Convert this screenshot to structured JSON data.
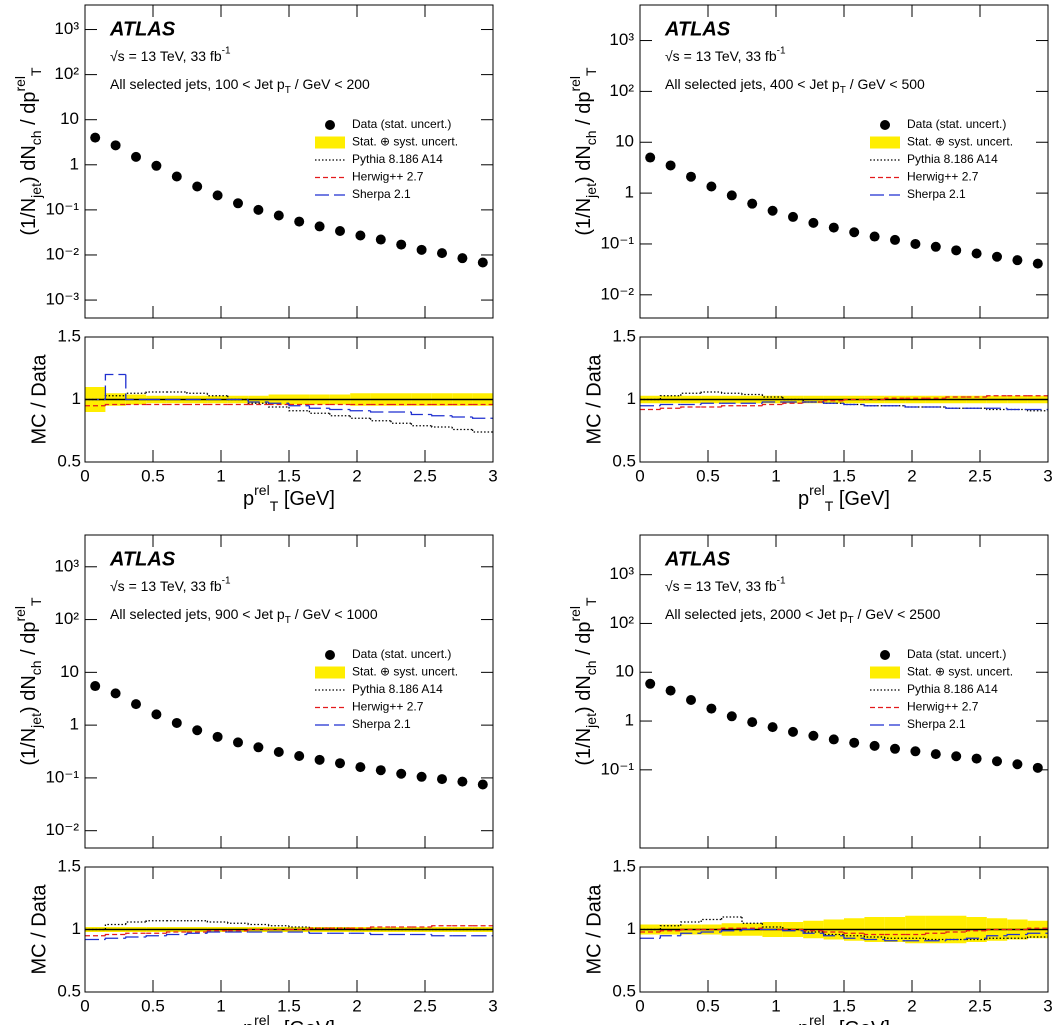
{
  "chart_data": [
    {
      "type": "ratio_histogram",
      "experiment": "ATLAS",
      "energy": [
        {
          "text": "√s = 13 TeV, 33 fb"
        },
        {
          "text": "-1",
          "shift": "sup"
        }
      ],
      "selection": [
        {
          "text": "All selected jets, 100 < Jet p"
        },
        {
          "text": "T",
          "shift": "sub"
        },
        {
          "text": " / GeV < 200"
        }
      ],
      "ylabel": [
        {
          "text": "(1/N"
        },
        {
          "text": "jet",
          "shift": "sub"
        },
        {
          "text": ") dN"
        },
        {
          "text": "ch",
          "shift": "sub"
        },
        {
          "text": " / dp"
        },
        {
          "text": "rel",
          "shift": "sup"
        },
        {
          "text": "T",
          "shift": "sub"
        }
      ],
      "xlabel": [
        {
          "text": "p"
        },
        {
          "text": "rel",
          "shift": "sup"
        },
        {
          "text": "T",
          "shift": "sub"
        },
        {
          "text": " [GeV]"
        }
      ],
      "log_y": true,
      "ylim": [
        0.0004,
        3500
      ],
      "yticks": [
        {
          "value": 0.001,
          "label": "10⁻³"
        },
        {
          "value": 0.01,
          "label": "10⁻²"
        },
        {
          "value": 0.1,
          "label": "10⁻¹"
        },
        1,
        10,
        {
          "value": 100,
          "label": "10²"
        },
        {
          "value": 1000,
          "label": "10³"
        }
      ],
      "xlim": [
        0,
        3
      ],
      "xticks": [
        0,
        0.5,
        1,
        1.5,
        2,
        2.5,
        3
      ],
      "bins": [
        0,
        0.15,
        0.3,
        0.45,
        0.6,
        0.75,
        0.9,
        1.05,
        1.2,
        1.35,
        1.5,
        1.65,
        1.8,
        1.95,
        2.1,
        2.25,
        2.4,
        2.55,
        2.7,
        2.85,
        3
      ],
      "series": [
        {
          "name": "Data (stat. uncert.)",
          "color": "#000000",
          "values": [
            4,
            2.7,
            1.5,
            0.95,
            0.55,
            0.33,
            0.21,
            0.14,
            0.1,
            0.075,
            0.055,
            0.043,
            0.034,
            0.027,
            0.022,
            0.017,
            0.013,
            0.011,
            0.0085,
            0.0068
          ]
        },
        {
          "name": "Stat. ⊕ syst. uncert.",
          "color": "#ffee00",
          "values": [
            0.1,
            0.05,
            0.04,
            0.03,
            0.03,
            0.03,
            0.03,
            0.03,
            0.03,
            0.04,
            0.04,
            0.04,
            0.04,
            0.05,
            0.05,
            0.05,
            0.05,
            0.05,
            0.05,
            0.05
          ]
        },
        {
          "name": "Pythia 8.186 A14",
          "color": "#000000",
          "line_style": "dotted",
          "values": [
            1.0,
            1.03,
            1.05,
            1.06,
            1.06,
            1.05,
            1.03,
            1.0,
            0.97,
            0.94,
            0.91,
            0.89,
            0.87,
            0.85,
            0.83,
            0.81,
            0.79,
            0.78,
            0.76,
            0.74
          ]
        },
        {
          "name": "Herwig++ 2.7",
          "color": "#e31a1c",
          "line_style": "dashed",
          "values": [
            0.95,
            0.96,
            0.96,
            0.96,
            0.96,
            0.96,
            0.96,
            0.96,
            0.96,
            0.96,
            0.96,
            0.96,
            0.96,
            0.96,
            0.96,
            0.96,
            0.96,
            0.96,
            0.96,
            0.96
          ]
        },
        {
          "name": "Sherpa 2.1",
          "color": "#1f2fd0",
          "line_style": "long-dashed",
          "values": [
            1.0,
            1.2,
            1.0,
            1.0,
            1.0,
            1.0,
            1.0,
            1.0,
            0.98,
            0.97,
            0.95,
            0.93,
            0.92,
            0.91,
            0.9,
            0.9,
            0.88,
            0.87,
            0.86,
            0.85
          ]
        }
      ],
      "ratio": {
        "ylabel": "MC / Data",
        "ylim": [
          0.5,
          1.5
        ],
        "yticks": [
          0.5,
          1,
          1.5
        ],
        "reference": 1
      }
    },
    {
      "type": "ratio_histogram",
      "experiment": "ATLAS",
      "energy": [
        {
          "text": "√s = 13 TeV, 33 fb"
        },
        {
          "text": "-1",
          "shift": "sup"
        }
      ],
      "selection": [
        {
          "text": "All selected jets, 400 < Jet p"
        },
        {
          "text": "T",
          "shift": "sub"
        },
        {
          "text": " / GeV < 500"
        }
      ],
      "ylabel": [
        {
          "text": "(1/N"
        },
        {
          "text": "jet",
          "shift": "sub"
        },
        {
          "text": ") dN"
        },
        {
          "text": "ch",
          "shift": "sub"
        },
        {
          "text": " / dp"
        },
        {
          "text": "rel",
          "shift": "sup"
        },
        {
          "text": "T",
          "shift": "sub"
        }
      ],
      "xlabel": [
        {
          "text": "p"
        },
        {
          "text": "rel",
          "shift": "sup"
        },
        {
          "text": "T",
          "shift": "sub"
        },
        {
          "text": " [GeV]"
        }
      ],
      "log_y": true,
      "ylim": [
        0.0035,
        5000
      ],
      "yticks": [
        {
          "value": 0.01,
          "label": "10⁻²"
        },
        {
          "value": 0.1,
          "label": "10⁻¹"
        },
        1,
        10,
        {
          "value": 100,
          "label": "10²"
        },
        {
          "value": 1000,
          "label": "10³"
        }
      ],
      "xlim": [
        0,
        3
      ],
      "xticks": [
        0,
        0.5,
        1,
        1.5,
        2,
        2.5,
        3
      ],
      "bins": [
        0,
        0.15,
        0.3,
        0.45,
        0.6,
        0.75,
        0.9,
        1.05,
        1.2,
        1.35,
        1.5,
        1.65,
        1.8,
        1.95,
        2.1,
        2.25,
        2.4,
        2.55,
        2.7,
        2.85,
        3
      ],
      "series": [
        {
          "name": "Data (stat. uncert.)",
          "color": "#000000",
          "values": [
            5,
            3.5,
            2.1,
            1.35,
            0.9,
            0.62,
            0.45,
            0.34,
            0.26,
            0.21,
            0.17,
            0.14,
            0.12,
            0.1,
            0.088,
            0.075,
            0.065,
            0.056,
            0.048,
            0.041
          ]
        },
        {
          "name": "Stat. ⊕ syst. uncert.",
          "color": "#ffee00",
          "values": [
            0.03,
            0.03,
            0.03,
            0.03,
            0.03,
            0.03,
            0.03,
            0.03,
            0.03,
            0.03,
            0.03,
            0.03,
            0.03,
            0.03,
            0.03,
            0.03,
            0.03,
            0.03,
            0.03,
            0.03
          ]
        },
        {
          "name": "Pythia 8.186 A14",
          "color": "#000000",
          "line_style": "dotted",
          "values": [
            1.0,
            1.03,
            1.05,
            1.06,
            1.05,
            1.04,
            1.02,
            1.0,
            0.98,
            0.97,
            0.96,
            0.95,
            0.95,
            0.94,
            0.94,
            0.93,
            0.93,
            0.92,
            0.92,
            0.91
          ]
        },
        {
          "name": "Herwig++ 2.7",
          "color": "#e31a1c",
          "line_style": "dashed",
          "values": [
            0.92,
            0.93,
            0.94,
            0.94,
            0.95,
            0.95,
            0.96,
            0.97,
            0.98,
            0.99,
            1.0,
            1.0,
            1.01,
            1.01,
            1.01,
            1.02,
            1.02,
            1.03,
            1.03,
            1.03
          ]
        },
        {
          "name": "Sherpa 2.1",
          "color": "#1f2fd0",
          "line_style": "long-dashed",
          "values": [
            0.95,
            0.96,
            0.96,
            0.97,
            0.97,
            0.97,
            0.98,
            0.98,
            0.98,
            0.97,
            0.96,
            0.95,
            0.95,
            0.94,
            0.94,
            0.93,
            0.93,
            0.93,
            0.92,
            0.92
          ]
        }
      ],
      "ratio": {
        "ylabel": "MC / Data",
        "ylim": [
          0.5,
          1.5
        ],
        "yticks": [
          0.5,
          1,
          1.5
        ],
        "reference": 1
      }
    },
    {
      "type": "ratio_histogram",
      "experiment": "ATLAS",
      "energy": [
        {
          "text": "√s = 13 TeV, 33 fb"
        },
        {
          "text": "-1",
          "shift": "sup"
        }
      ],
      "selection": [
        {
          "text": "All selected jets, 900 < Jet p"
        },
        {
          "text": "T",
          "shift": "sub"
        },
        {
          "text": " / GeV < 1000"
        }
      ],
      "ylabel": [
        {
          "text": "(1/N"
        },
        {
          "text": "jet",
          "shift": "sub"
        },
        {
          "text": ") dN"
        },
        {
          "text": "ch",
          "shift": "sub"
        },
        {
          "text": " / dp"
        },
        {
          "text": "rel",
          "shift": "sup"
        },
        {
          "text": "T",
          "shift": "sub"
        }
      ],
      "xlabel": [
        {
          "text": "p"
        },
        {
          "text": "rel",
          "shift": "sup"
        },
        {
          "text": "T",
          "shift": "sub"
        },
        {
          "text": " [GeV]"
        }
      ],
      "log_y": true,
      "ylim": [
        0.0047,
        4000
      ],
      "yticks": [
        {
          "value": 0.01,
          "label": "10⁻²"
        },
        {
          "value": 0.1,
          "label": "10⁻¹"
        },
        1,
        10,
        {
          "value": 100,
          "label": "10²"
        },
        {
          "value": 1000,
          "label": "10³"
        }
      ],
      "xlim": [
        0,
        3
      ],
      "xticks": [
        0,
        0.5,
        1,
        1.5,
        2,
        2.5,
        3
      ],
      "bins": [
        0,
        0.15,
        0.3,
        0.45,
        0.6,
        0.75,
        0.9,
        1.05,
        1.2,
        1.35,
        1.5,
        1.65,
        1.8,
        1.95,
        2.1,
        2.25,
        2.4,
        2.55,
        2.7,
        2.85,
        3
      ],
      "series": [
        {
          "name": "Data (stat. uncert.)",
          "color": "#000000",
          "values": [
            5.5,
            4,
            2.5,
            1.6,
            1.1,
            0.8,
            0.6,
            0.47,
            0.38,
            0.31,
            0.26,
            0.22,
            0.19,
            0.16,
            0.14,
            0.12,
            0.105,
            0.095,
            0.085,
            0.075
          ]
        },
        {
          "name": "Stat. ⊕ syst. uncert.",
          "color": "#ffee00",
          "values": [
            0.02,
            0.02,
            0.02,
            0.02,
            0.02,
            0.02,
            0.02,
            0.02,
            0.02,
            0.02,
            0.02,
            0.02,
            0.02,
            0.02,
            0.02,
            0.02,
            0.02,
            0.02,
            0.02,
            0.02
          ]
        },
        {
          "name": "Pythia 8.186 A14",
          "color": "#000000",
          "line_style": "dotted",
          "values": [
            1.0,
            1.04,
            1.06,
            1.07,
            1.07,
            1.07,
            1.06,
            1.05,
            1.04,
            1.03,
            1.02,
            1.01,
            1.01,
            1.0,
            1.0,
            1.0,
            1.0,
            1.0,
            1.0,
            1.0
          ]
        },
        {
          "name": "Herwig++ 2.7",
          "color": "#e31a1c",
          "line_style": "dashed",
          "values": [
            0.95,
            0.96,
            0.97,
            0.97,
            0.98,
            0.98,
            0.99,
            0.99,
            1.0,
            1.0,
            1.0,
            1.01,
            1.01,
            1.01,
            1.02,
            1.02,
            1.02,
            1.03,
            1.03,
            1.03
          ]
        },
        {
          "name": "Sherpa 2.1",
          "color": "#1f2fd0",
          "line_style": "long-dashed",
          "values": [
            0.92,
            0.93,
            0.94,
            0.95,
            0.96,
            0.97,
            0.98,
            0.98,
            0.98,
            0.98,
            0.98,
            0.97,
            0.97,
            0.97,
            0.96,
            0.96,
            0.96,
            0.95,
            0.95,
            0.95
          ]
        }
      ],
      "ratio": {
        "ylabel": "MC / Data",
        "ylim": [
          0.5,
          1.5
        ],
        "yticks": [
          0.5,
          1,
          1.5
        ],
        "reference": 1
      }
    },
    {
      "type": "ratio_histogram",
      "experiment": "ATLAS",
      "energy": [
        {
          "text": "√s = 13 TeV, 33 fb"
        },
        {
          "text": "-1",
          "shift": "sup"
        }
      ],
      "selection": [
        {
          "text": "All selected jets, 2000 < Jet p"
        },
        {
          "text": "T",
          "shift": "sub"
        },
        {
          "text": " / GeV < 2500"
        }
      ],
      "ylabel": [
        {
          "text": "(1/N"
        },
        {
          "text": "jet",
          "shift": "sub"
        },
        {
          "text": ") dN"
        },
        {
          "text": "ch",
          "shift": "sub"
        },
        {
          "text": " / dp"
        },
        {
          "text": "rel",
          "shift": "sup"
        },
        {
          "text": "T",
          "shift": "sub"
        }
      ],
      "xlabel": [
        {
          "text": "p"
        },
        {
          "text": "rel",
          "shift": "sup"
        },
        {
          "text": "T",
          "shift": "sub"
        },
        {
          "text": " [GeV]"
        }
      ],
      "log_y": true,
      "ylim": [
        0.0025,
        6500
      ],
      "yticks": [
        {
          "value": 0.1,
          "label": "10⁻¹"
        },
        1,
        10,
        {
          "value": 100,
          "label": "10²"
        },
        {
          "value": 1000,
          "label": "10³"
        }
      ],
      "xlim": [
        0,
        3
      ],
      "xticks": [
        0,
        0.5,
        1,
        1.5,
        2,
        2.5,
        3
      ],
      "bins": [
        0,
        0.15,
        0.3,
        0.45,
        0.6,
        0.75,
        0.9,
        1.05,
        1.2,
        1.35,
        1.5,
        1.65,
        1.8,
        1.95,
        2.1,
        2.25,
        2.4,
        2.55,
        2.7,
        2.85,
        3
      ],
      "series": [
        {
          "name": "Data (stat. uncert.)",
          "color": "#000000",
          "values": [
            5.8,
            4.2,
            2.7,
            1.8,
            1.25,
            0.95,
            0.75,
            0.6,
            0.5,
            0.42,
            0.36,
            0.31,
            0.27,
            0.24,
            0.21,
            0.19,
            0.17,
            0.15,
            0.13,
            0.11
          ]
        },
        {
          "name": "Stat. ⊕ syst. uncert.",
          "color": "#ffee00",
          "values": [
            0.04,
            0.04,
            0.04,
            0.04,
            0.05,
            0.05,
            0.06,
            0.06,
            0.07,
            0.08,
            0.09,
            0.1,
            0.1,
            0.11,
            0.11,
            0.11,
            0.1,
            0.09,
            0.08,
            0.07
          ]
        },
        {
          "name": "Pythia 8.186 A14",
          "color": "#000000",
          "line_style": "dotted",
          "values": [
            1.0,
            1.03,
            1.06,
            1.08,
            1.1,
            1.05,
            1.02,
            1.0,
            0.98,
            0.96,
            0.95,
            0.94,
            0.93,
            0.93,
            0.92,
            0.92,
            0.92,
            0.93,
            0.93,
            0.94
          ]
        },
        {
          "name": "Herwig++ 2.7",
          "color": "#e31a1c",
          "line_style": "dashed",
          "values": [
            0.98,
            0.99,
            1.0,
            1.0,
            1.01,
            1.01,
            1.0,
            1.0,
            0.99,
            0.98,
            0.97,
            0.96,
            0.96,
            0.96,
            0.97,
            0.98,
            0.99,
            1.0,
            1.0,
            1.01
          ]
        },
        {
          "name": "Sherpa 2.1",
          "color": "#1f2fd0",
          "line_style": "long-dashed",
          "values": [
            0.93,
            0.95,
            0.97,
            0.98,
            0.99,
            1.0,
            1.0,
            0.99,
            0.97,
            0.95,
            0.93,
            0.92,
            0.91,
            0.91,
            0.91,
            0.92,
            0.93,
            0.95,
            0.96,
            0.97
          ]
        }
      ],
      "ratio": {
        "ylabel": "MC / Data",
        "ylim": [
          0.5,
          1.5
        ],
        "yticks": [
          0.5,
          1,
          1.5
        ],
        "reference": 1
      }
    }
  ]
}
